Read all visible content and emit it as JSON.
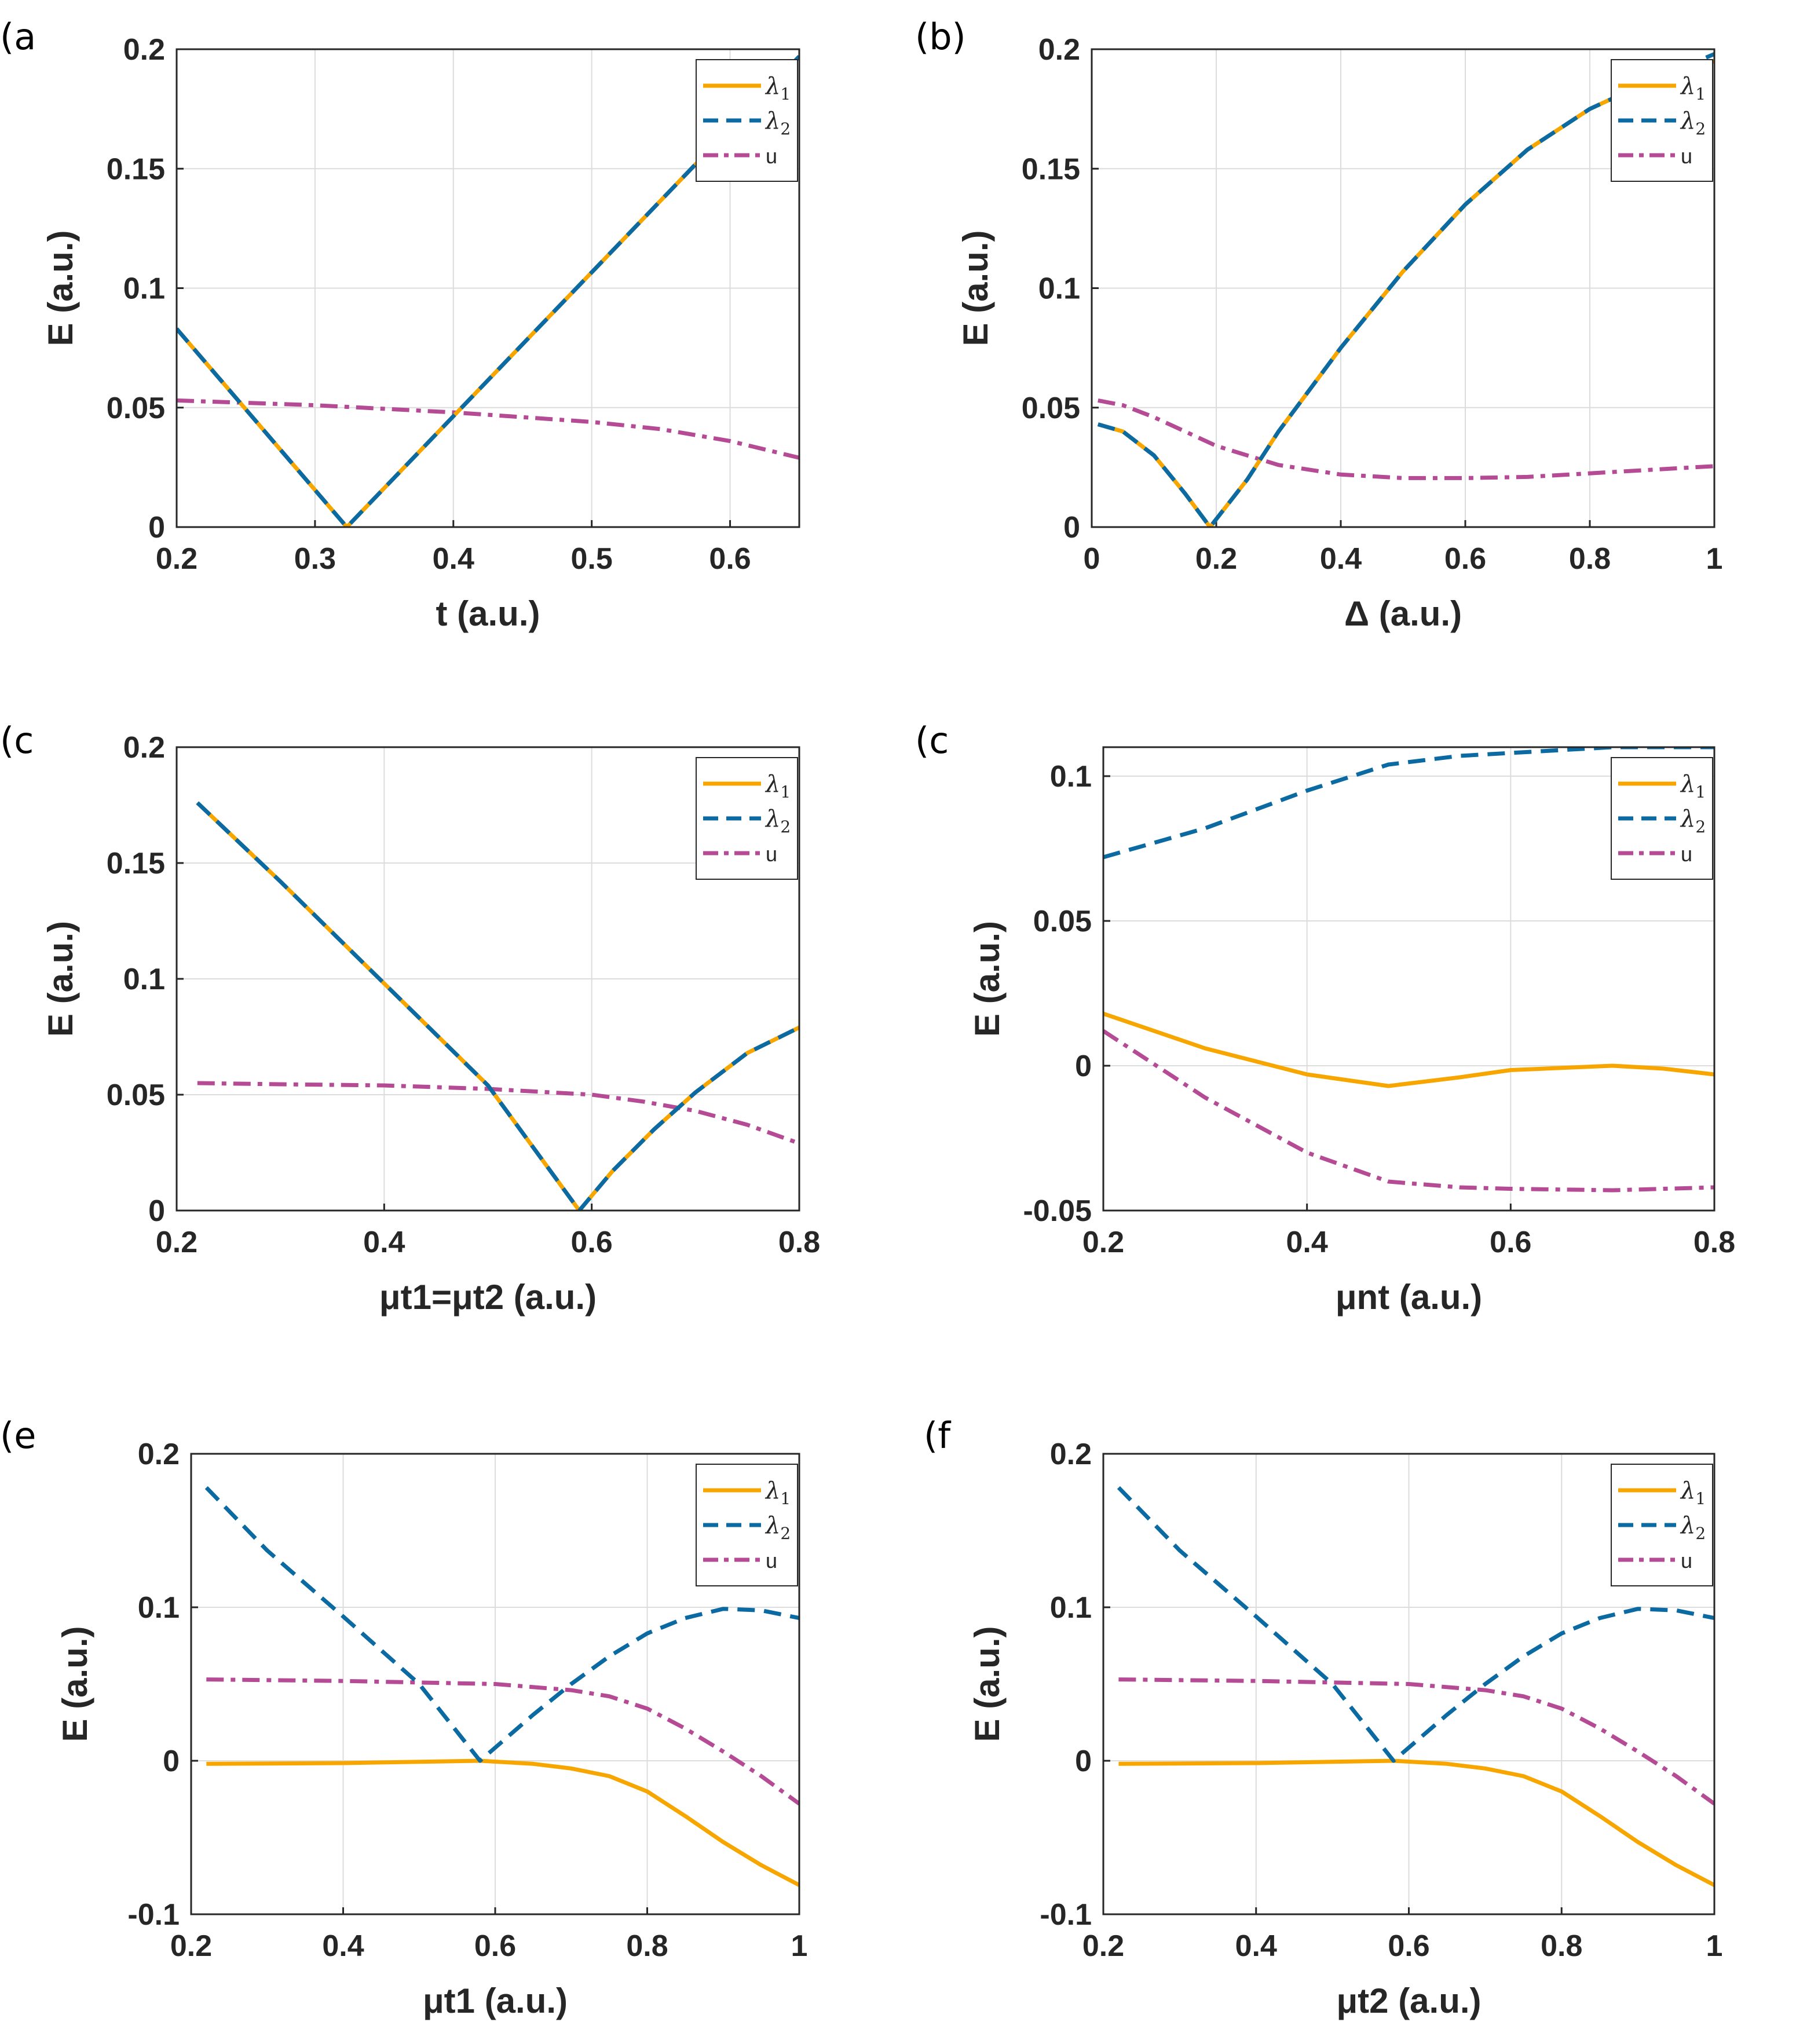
{
  "colors": {
    "lambda1": "#F7A600",
    "lambda2": "#0B6AA1",
    "u": "#B54B94",
    "grid": "#DCDCDC",
    "axis": "#262626"
  },
  "legend_labels": {
    "lambda1": "λ",
    "lambda1_sub": "1",
    "lambda2": "λ",
    "lambda2_sub": "2",
    "u": "u"
  },
  "chart_data": [
    {
      "type": "line",
      "panel_letter": "(a",
      "xlabel": "t (a.u.)",
      "ylabel": "E (a.u.)",
      "xlim": [
        0.2,
        0.65
      ],
      "ylim": [
        0,
        0.2
      ],
      "xticks": [
        "0.2",
        "0.3",
        "0.4",
        "0.5",
        "0.6"
      ],
      "yticks": [
        "0",
        "0.05",
        "0.1",
        "0.15",
        "0.2"
      ],
      "series": [
        {
          "name": "lambda1",
          "x": [
            0.2,
            0.323,
            0.65
          ],
          "y": [
            0.083,
            0.0,
            0.197
          ]
        },
        {
          "name": "lambda2",
          "x": [
            0.2,
            0.323,
            0.65
          ],
          "y": [
            0.083,
            0.0,
            0.197
          ]
        },
        {
          "name": "u",
          "x": [
            0.2,
            0.3,
            0.4,
            0.5,
            0.55,
            0.6,
            0.65
          ],
          "y": [
            0.053,
            0.051,
            0.048,
            0.044,
            0.041,
            0.036,
            0.029
          ]
        }
      ]
    },
    {
      "type": "line",
      "panel_letter": "(b)",
      "xlabel": "Δ (a.u.)",
      "ylabel": "E (a.u.)",
      "xlim": [
        0,
        1
      ],
      "ylim": [
        0,
        0.2
      ],
      "xticks": [
        "0",
        "0.2",
        "0.4",
        "0.6",
        "0.8",
        "1"
      ],
      "yticks": [
        "0",
        "0.05",
        "0.1",
        "0.15",
        "0.2"
      ],
      "series": [
        {
          "name": "lambda1",
          "x": [
            0.01,
            0.05,
            0.1,
            0.15,
            0.19,
            0.25,
            0.3,
            0.4,
            0.5,
            0.6,
            0.7,
            0.8,
            0.9,
            1.0
          ],
          "y": [
            0.043,
            0.04,
            0.03,
            0.014,
            0.0,
            0.02,
            0.04,
            0.075,
            0.107,
            0.135,
            0.158,
            0.175,
            0.187,
            0.195
          ]
        },
        {
          "name": "lambda2",
          "x": [
            0.01,
            0.05,
            0.1,
            0.15,
            0.19,
            0.25,
            0.3,
            0.4,
            0.5,
            0.6,
            0.7,
            0.8,
            0.9,
            1.0
          ],
          "y": [
            0.043,
            0.04,
            0.03,
            0.014,
            0.0,
            0.02,
            0.04,
            0.075,
            0.107,
            0.135,
            0.158,
            0.175,
            0.187,
            0.198
          ]
        },
        {
          "name": "u",
          "x": [
            0.01,
            0.05,
            0.1,
            0.15,
            0.2,
            0.3,
            0.4,
            0.5,
            0.6,
            0.7,
            0.8,
            0.9,
            1.0
          ],
          "y": [
            0.053,
            0.051,
            0.046,
            0.04,
            0.034,
            0.026,
            0.022,
            0.0205,
            0.0205,
            0.021,
            0.0225,
            0.024,
            0.0255
          ]
        }
      ]
    },
    {
      "type": "line",
      "panel_letter": "(c",
      "xlabel": "μt1=μt2 (a.u.)",
      "ylabel": "E (a.u.)",
      "xlim": [
        0.2,
        0.8
      ],
      "ylim": [
        0,
        0.2
      ],
      "xticks": [
        "0.2",
        "0.4",
        "0.6",
        "0.8"
      ],
      "yticks": [
        "0",
        "0.05",
        "0.1",
        "0.15",
        "0.2"
      ],
      "series": [
        {
          "name": "lambda1",
          "x": [
            0.22,
            0.3,
            0.4,
            0.5,
            0.588,
            0.62,
            0.66,
            0.7,
            0.75,
            0.8
          ],
          "y": [
            0.176,
            0.142,
            0.098,
            0.054,
            0.0,
            0.017,
            0.035,
            0.051,
            0.068,
            0.079
          ]
        },
        {
          "name": "lambda2",
          "x": [
            0.22,
            0.3,
            0.4,
            0.5,
            0.588,
            0.62,
            0.66,
            0.7,
            0.75,
            0.8
          ],
          "y": [
            0.176,
            0.142,
            0.098,
            0.054,
            0.0,
            0.017,
            0.035,
            0.051,
            0.068,
            0.079
          ]
        },
        {
          "name": "u",
          "x": [
            0.22,
            0.3,
            0.4,
            0.5,
            0.6,
            0.65,
            0.7,
            0.75,
            0.8
          ],
          "y": [
            0.055,
            0.0545,
            0.054,
            0.0525,
            0.05,
            0.047,
            0.043,
            0.037,
            0.029
          ]
        }
      ]
    },
    {
      "type": "line",
      "panel_letter": "(c",
      "xlabel": "μnt (a.u.)",
      "ylabel": "E (a.u.)",
      "xlim": [
        0.2,
        0.8
      ],
      "ylim": [
        -0.05,
        0.11
      ],
      "xticks": [
        "0.2",
        "0.4",
        "0.6",
        "0.8"
      ],
      "yticks": [
        "-0.05",
        "0",
        "0.05",
        "0.1"
      ],
      "series": [
        {
          "name": "lambda1",
          "x": [
            0.2,
            0.3,
            0.4,
            0.48,
            0.55,
            0.6,
            0.7,
            0.75,
            0.8
          ],
          "y": [
            0.018,
            0.006,
            -0.003,
            -0.007,
            -0.004,
            -0.0015,
            0.0,
            -0.001,
            -0.003
          ]
        },
        {
          "name": "lambda2",
          "x": [
            0.2,
            0.3,
            0.4,
            0.48,
            0.55,
            0.6,
            0.7,
            0.8
          ],
          "y": [
            0.072,
            0.082,
            0.095,
            0.104,
            0.107,
            0.108,
            0.11,
            0.11
          ]
        },
        {
          "name": "u",
          "x": [
            0.2,
            0.3,
            0.4,
            0.48,
            0.55,
            0.6,
            0.7,
            0.8
          ],
          "y": [
            0.012,
            -0.011,
            -0.03,
            -0.04,
            -0.042,
            -0.0425,
            -0.043,
            -0.042
          ]
        }
      ]
    },
    {
      "type": "line",
      "panel_letter": "(e",
      "xlabel": "μt1 (a.u.)",
      "ylabel": "E (a.u.)",
      "xlim": [
        0.2,
        1.0
      ],
      "ylim": [
        -0.1,
        0.2
      ],
      "xticks": [
        "0.2",
        "0.4",
        "0.6",
        "0.8",
        "1"
      ],
      "yticks": [
        "-0.1",
        "0",
        "0.1",
        "0.2"
      ],
      "series": [
        {
          "name": "lambda1",
          "x": [
            0.22,
            0.4,
            0.58,
            0.65,
            0.7,
            0.75,
            0.8,
            0.85,
            0.9,
            0.95,
            1.0
          ],
          "y": [
            -0.002,
            -0.0015,
            0.0,
            -0.002,
            -0.005,
            -0.01,
            -0.02,
            -0.036,
            -0.053,
            -0.068,
            -0.081
          ]
        },
        {
          "name": "lambda2",
          "x": [
            0.22,
            0.3,
            0.4,
            0.5,
            0.58,
            0.65,
            0.7,
            0.75,
            0.8,
            0.85,
            0.9,
            0.95,
            1.0
          ],
          "y": [
            0.178,
            0.137,
            0.094,
            0.05,
            0.0,
            0.03,
            0.05,
            0.068,
            0.083,
            0.093,
            0.099,
            0.098,
            0.093
          ]
        },
        {
          "name": "u",
          "x": [
            0.22,
            0.4,
            0.6,
            0.7,
            0.75,
            0.8,
            0.85,
            0.9,
            0.95,
            1.0
          ],
          "y": [
            0.053,
            0.052,
            0.05,
            0.046,
            0.042,
            0.034,
            0.021,
            0.006,
            -0.01,
            -0.028
          ]
        }
      ]
    },
    {
      "type": "line",
      "panel_letter": "(f",
      "xlabel": "μt2 (a.u.)",
      "ylabel": "E (a.u.)",
      "xlim": [
        0.2,
        1.0
      ],
      "ylim": [
        -0.1,
        0.2
      ],
      "xticks": [
        "0.2",
        "0.4",
        "0.6",
        "0.8",
        "1"
      ],
      "yticks": [
        "-0.1",
        "0",
        "0.1",
        "0.2"
      ],
      "series": [
        {
          "name": "lambda1",
          "x": [
            0.22,
            0.4,
            0.58,
            0.65,
            0.7,
            0.75,
            0.8,
            0.85,
            0.9,
            0.95,
            1.0
          ],
          "y": [
            -0.002,
            -0.0015,
            0.0,
            -0.002,
            -0.005,
            -0.01,
            -0.02,
            -0.036,
            -0.053,
            -0.068,
            -0.081
          ]
        },
        {
          "name": "lambda2",
          "x": [
            0.22,
            0.3,
            0.4,
            0.5,
            0.58,
            0.65,
            0.7,
            0.75,
            0.8,
            0.85,
            0.9,
            0.95,
            1.0
          ],
          "y": [
            0.178,
            0.137,
            0.094,
            0.05,
            0.0,
            0.03,
            0.05,
            0.068,
            0.083,
            0.093,
            0.099,
            0.098,
            0.093
          ]
        },
        {
          "name": "u",
          "x": [
            0.22,
            0.4,
            0.6,
            0.7,
            0.75,
            0.8,
            0.85,
            0.9,
            0.95,
            1.0
          ],
          "y": [
            0.053,
            0.052,
            0.05,
            0.046,
            0.042,
            0.034,
            0.021,
            0.006,
            -0.01,
            -0.028
          ]
        }
      ]
    }
  ]
}
